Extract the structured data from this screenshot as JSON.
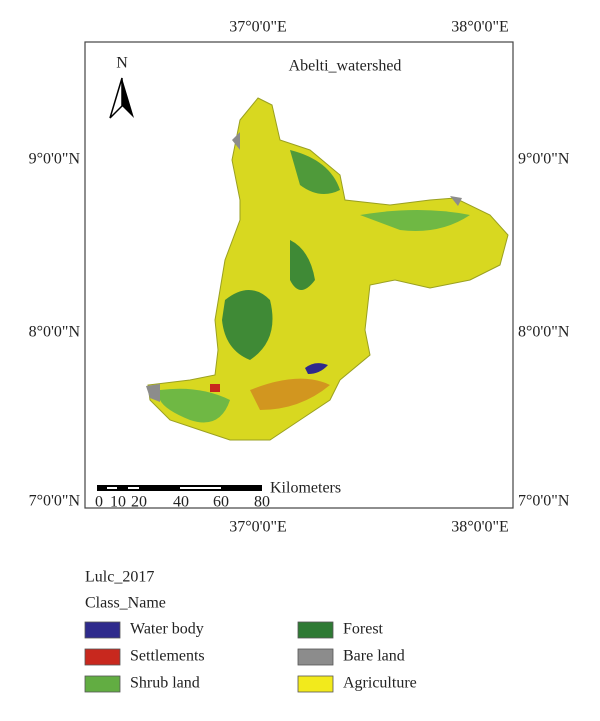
{
  "map": {
    "title": "Abelti_watershed",
    "north": "N",
    "top_labels": [
      "37°0'0\"E",
      "38°0'0\"E"
    ],
    "bottom_labels": [
      "37°0'0\"E",
      "38°0'0\"E"
    ],
    "left_labels": [
      "9°0'0\"N",
      "8°0'0\"N",
      "7°0'0\"N"
    ],
    "right_labels": [
      "9°0'0\"N",
      "8°0'0\"N",
      "7°0'0\"N"
    ],
    "scale": {
      "ticks": [
        "0",
        "10",
        "20",
        "40",
        "60",
        "80"
      ],
      "unit": "Kilometers"
    }
  },
  "legend": {
    "layer": "Lulc_2017",
    "field": "Class_Name",
    "classes": [
      {
        "name": "Water body",
        "color": "#2e2a8c"
      },
      {
        "name": "Forest",
        "color": "#2e7a34"
      },
      {
        "name": "Settlements",
        "color": "#c8281e"
      },
      {
        "name": "Bare land",
        "color": "#8c8c8c"
      },
      {
        "name": "Shrub land",
        "color": "#62ad42"
      },
      {
        "name": "Agriculture",
        "color": "#f2ea1c"
      }
    ]
  }
}
